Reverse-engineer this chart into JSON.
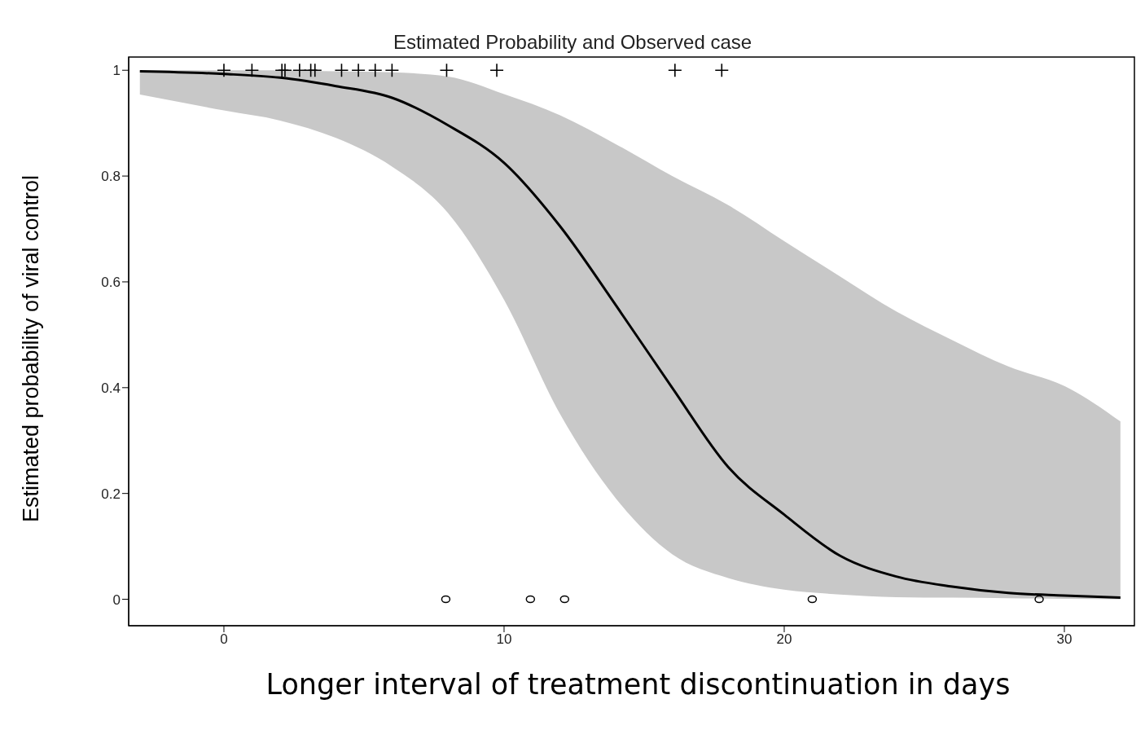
{
  "chart_data": {
    "type": "line",
    "title": "Estimated Probability and Observed case",
    "xlabel": "Longer interval of treatment discontinuation in days",
    "ylabel": "Estimated probability of viral control",
    "xlim": [
      -3.4,
      32.5
    ],
    "xticks": [
      0,
      10,
      20,
      30
    ],
    "ylim": [
      -0.05,
      1.025
    ],
    "yticks": [
      0,
      0.2,
      0.4,
      0.6,
      0.8,
      1
    ],
    "line_style": "solid",
    "marker": "none",
    "series": [
      {
        "color": "#000000",
        "x": [
          -3,
          0,
          2,
          4,
          6,
          8,
          10,
          12,
          14,
          16,
          18,
          20,
          22,
          24,
          26,
          28,
          30,
          32
        ],
        "values": [
          0.998,
          0.993,
          0.986,
          0.97,
          0.948,
          0.896,
          0.825,
          0.705,
          0.555,
          0.4,
          0.25,
          0.16,
          0.082,
          0.043,
          0.024,
          0.012,
          0.007,
          0.003
        ],
        "lower": [
          0.954,
          0.924,
          0.905,
          0.872,
          0.818,
          0.73,
          0.566,
          0.35,
          0.19,
          0.085,
          0.04,
          0.018,
          0.009,
          0.004,
          0.003,
          0.002,
          0.001,
          0
        ],
        "upper": [
          1,
          1,
          1,
          0.998,
          0.996,
          0.988,
          0.955,
          0.915,
          0.86,
          0.8,
          0.745,
          0.677,
          0.61,
          0.544,
          0.49,
          0.44,
          0.403,
          0.336
        ]
      },
      {
        "type": "scatter",
        "color": "#000000",
        "marker": "cross",
        "x": [
          0,
          1,
          2.07,
          2.18,
          2.7,
          3.1,
          3.25,
          4.2,
          4.8,
          5.4,
          6,
          7.95,
          9.74,
          16.1,
          17.77
        ],
        "values": [
          1,
          1,
          1,
          1,
          1,
          1,
          1,
          1,
          1,
          1,
          1,
          1,
          1,
          1,
          1
        ]
      },
      {
        "type": "scatter",
        "color": "#000000",
        "marker": "circle",
        "x": [
          7.92,
          10.94,
          12.16,
          21,
          29.1
        ],
        "values": [
          0,
          0,
          0,
          0,
          0
        ]
      }
    ]
  }
}
